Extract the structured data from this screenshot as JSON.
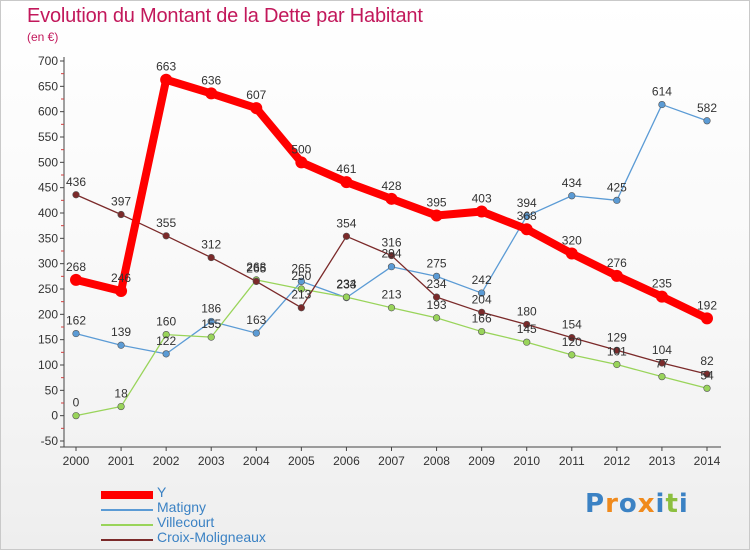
{
  "header": {
    "title": "Evolution du Montant de la Dette par Habitant",
    "unit": "(en €)"
  },
  "brand": {
    "text": "Proxiti",
    "colors": [
      "#3b82c4",
      "#f08a1c",
      "#3b82c4",
      "#f08a1c",
      "#3b82c4",
      "#8cbf3f",
      "#3b82c4"
    ]
  },
  "chart_data": {
    "type": "line",
    "title": "Evolution du Montant de la Dette par Habitant",
    "subtitle": "(en €)",
    "xlabel": "",
    "ylabel": "",
    "ylim": [
      -50,
      700
    ],
    "ytick_step": 50,
    "grid": false,
    "legend_position": "bottom-left",
    "x": [
      "2000",
      "2001",
      "2002",
      "2003",
      "2004",
      "2005",
      "2006",
      "2007",
      "2008",
      "2009",
      "2010",
      "2011",
      "2012",
      "2013",
      "2014"
    ],
    "yticks": [
      "-50",
      "0",
      "50",
      "100",
      "150",
      "200",
      "250",
      "300",
      "350",
      "400",
      "450",
      "500",
      "550",
      "600",
      "650",
      "700"
    ],
    "series": [
      {
        "name": "Y",
        "color": "#ff0000",
        "values": [
          268,
          246,
          663,
          636,
          607,
          500,
          461,
          428,
          395,
          403,
          368,
          320,
          276,
          235,
          192
        ],
        "labels": [
          "268",
          "246",
          "663",
          "636",
          "607",
          "500",
          "461",
          "428",
          "395",
          "403",
          "368",
          "320",
          "276",
          "235",
          "192"
        ]
      },
      {
        "name": "Matigny",
        "color": "#5b9bd5",
        "values": [
          162,
          139,
          122,
          186,
          163,
          265,
          233,
          294,
          275,
          242,
          394,
          434,
          425,
          614,
          582
        ],
        "labels": [
          "162",
          "139",
          "122",
          "186",
          "163",
          "265",
          "233",
          "294",
          "275",
          "242",
          "394",
          "434",
          "425",
          "614",
          "582"
        ]
      },
      {
        "name": "Villecourt",
        "color": "#99d45a",
        "values": [
          0,
          18,
          160,
          155,
          268,
          250,
          234,
          213,
          193,
          166,
          145,
          120,
          101,
          77,
          54
        ],
        "labels": [
          "0",
          "18",
          "160",
          "155",
          "268",
          "250",
          "234",
          "213",
          "193",
          "166",
          "145",
          "120",
          "101",
          "77",
          "54"
        ]
      },
      {
        "name": "Croix-Moligneaux",
        "color": "#7b2a2a",
        "values": [
          436,
          397,
          355,
          312,
          265,
          213,
          354,
          316,
          234,
          204,
          180,
          154,
          129,
          104,
          82
        ],
        "labels": [
          "436",
          "397",
          "355",
          "312",
          "265",
          "213",
          "354",
          "316",
          "234",
          "204",
          "180",
          "154",
          "129",
          "104",
          "82"
        ]
      }
    ]
  }
}
